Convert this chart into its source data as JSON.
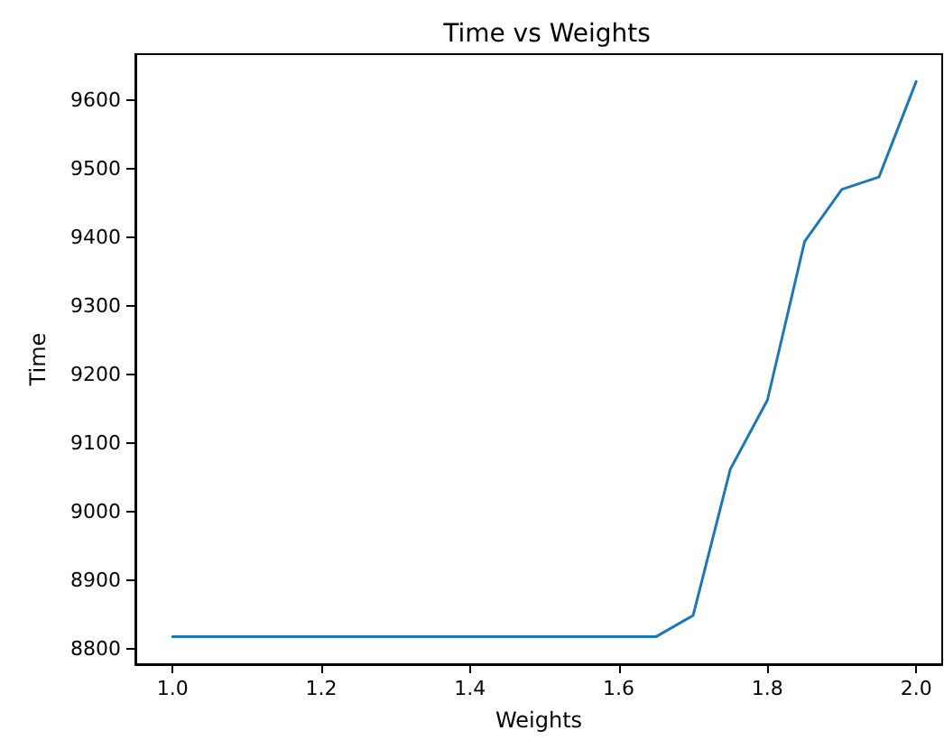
{
  "chart_data": {
    "type": "line",
    "title": "Time vs Weights",
    "xlabel": "Weights",
    "ylabel": "Time",
    "x": [
      1.0,
      1.05,
      1.1,
      1.15,
      1.2,
      1.25,
      1.3,
      1.35,
      1.4,
      1.45,
      1.5,
      1.55,
      1.6,
      1.65,
      1.7,
      1.75,
      1.8,
      1.85,
      1.9,
      1.95,
      2.0
    ],
    "series": [
      {
        "color": "#1f77b4",
        "values": [
          8818,
          8818,
          8818,
          8818,
          8818,
          8818,
          8818,
          8818,
          8818,
          8818,
          8818,
          8818,
          8818,
          8818,
          8849,
          9062,
          9163,
          9394,
          9470,
          9488,
          9627
        ]
      }
    ],
    "xlim": [
      0.95,
      2.035
    ],
    "ylim": [
      8778,
      9667
    ],
    "xticks": [
      {
        "value": 1.0,
        "label": "1.0"
      },
      {
        "value": 1.2,
        "label": "1.2"
      },
      {
        "value": 1.4,
        "label": "1.4"
      },
      {
        "value": 1.6,
        "label": "1.6"
      },
      {
        "value": 1.8,
        "label": "1.8"
      },
      {
        "value": 2.0,
        "label": "2.0"
      }
    ],
    "yticks": [
      8800,
      8900,
      9000,
      9100,
      9200,
      9300,
      9400,
      9500,
      9600
    ],
    "grid": false,
    "marker": "none",
    "line_style": "solid"
  }
}
